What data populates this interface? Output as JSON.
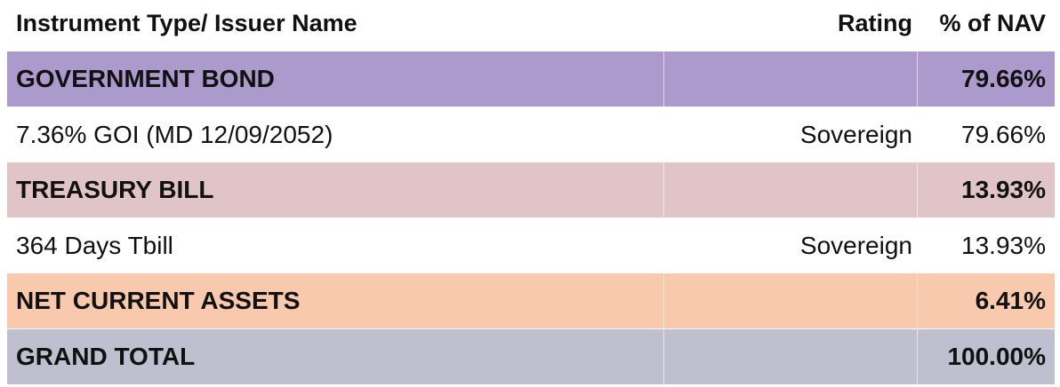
{
  "header": {
    "name": "Instrument Type/ Issuer Name",
    "rating": "Rating",
    "nav": "% of NAV"
  },
  "rows": [
    {
      "name": "GOVERNMENT BOND",
      "rating": "",
      "nav": "79.66%",
      "type": "category",
      "color": "#ab9acb"
    },
    {
      "name": "7.36% GOI (MD 12/09/2052)",
      "rating": "Sovereign",
      "nav": "79.66%",
      "type": "item",
      "color": "#ffffff"
    },
    {
      "name": "TREASURY BILL",
      "rating": "",
      "nav": "13.93%",
      "type": "category",
      "color": "#e1c4c8"
    },
    {
      "name": "364 Days Tbill",
      "rating": "Sovereign",
      "nav": "13.93%",
      "type": "item",
      "color": "#ffffff"
    },
    {
      "name": "NET CURRENT ASSETS",
      "rating": "",
      "nav": "6.41%",
      "type": "category",
      "color": "#f9c9ae"
    },
    {
      "name": "GRAND TOTAL",
      "rating": "",
      "nav": "100.00%",
      "type": "category",
      "color": "#c0bfcf"
    }
  ]
}
